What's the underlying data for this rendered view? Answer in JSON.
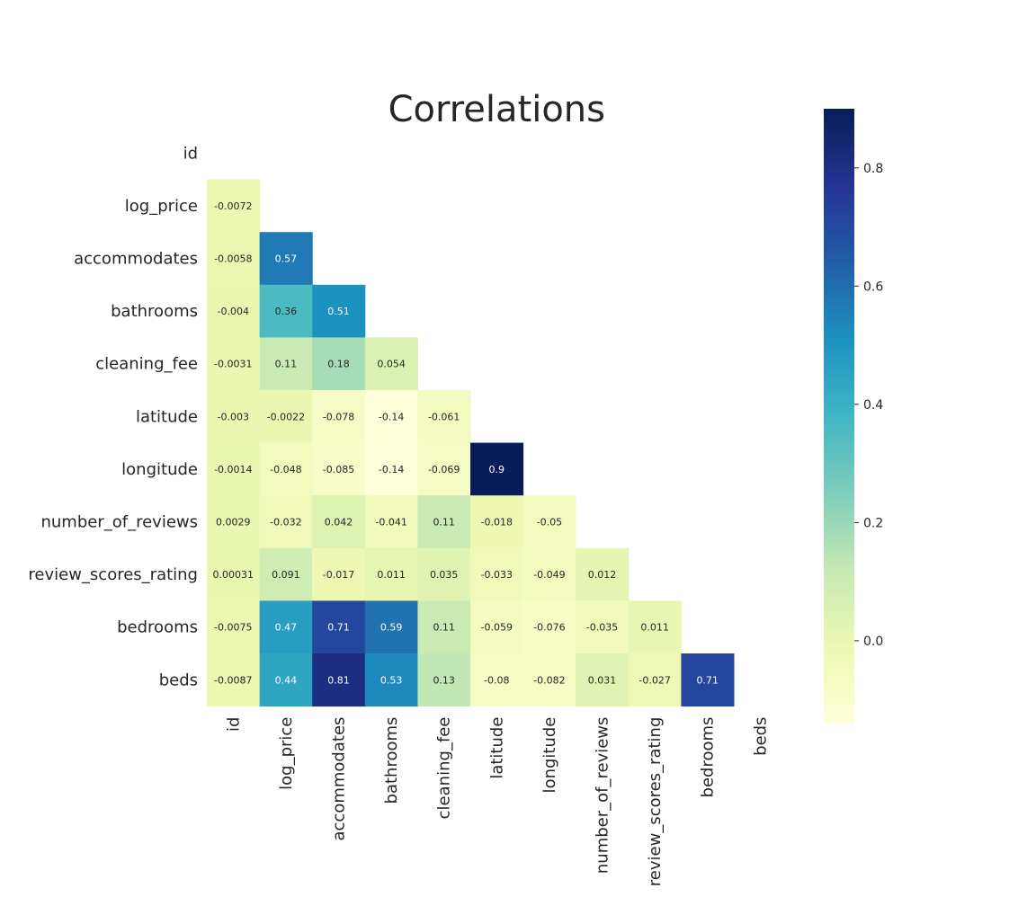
{
  "chart_data": {
    "type": "heatmap",
    "title": "Correlations",
    "variables": [
      "id",
      "log_price",
      "accommodates",
      "bathrooms",
      "cleaning_fee",
      "latitude",
      "longitude",
      "number_of_reviews",
      "review_scores_rating",
      "bedrooms",
      "beds"
    ],
    "lower_triangle": [
      [],
      [
        "-0.0072"
      ],
      [
        "-0.0058",
        "0.57"
      ],
      [
        "-0.004",
        "0.36",
        "0.51"
      ],
      [
        "-0.0031",
        "0.11",
        "0.18",
        "0.054"
      ],
      [
        "-0.003",
        "-0.0022",
        "-0.078",
        "-0.14",
        "-0.061"
      ],
      [
        "-0.0014",
        "-0.048",
        "-0.085",
        "-0.14",
        "-0.069",
        "0.9"
      ],
      [
        "0.0029",
        "-0.032",
        "0.042",
        "-0.041",
        "0.11",
        "-0.018",
        "-0.05"
      ],
      [
        "0.00031",
        "0.091",
        "-0.017",
        "0.011",
        "0.035",
        "-0.033",
        "-0.049",
        "0.012"
      ],
      [
        "-0.0075",
        "0.47",
        "0.71",
        "0.59",
        "0.11",
        "-0.059",
        "-0.076",
        "-0.035",
        "0.011"
      ],
      [
        "-0.0087",
        "0.44",
        "0.81",
        "0.53",
        "0.13",
        "-0.08",
        "-0.082",
        "0.031",
        "-0.027",
        "0.71"
      ]
    ],
    "mask": "upper-triangle-and-diagonal",
    "colormap": "YlGnBu",
    "color_range": [
      -0.14,
      0.9
    ],
    "colorbar": {
      "position": "right",
      "ticks": [
        "0.0",
        "0.2",
        "0.4",
        "0.6",
        "0.8"
      ]
    }
  }
}
